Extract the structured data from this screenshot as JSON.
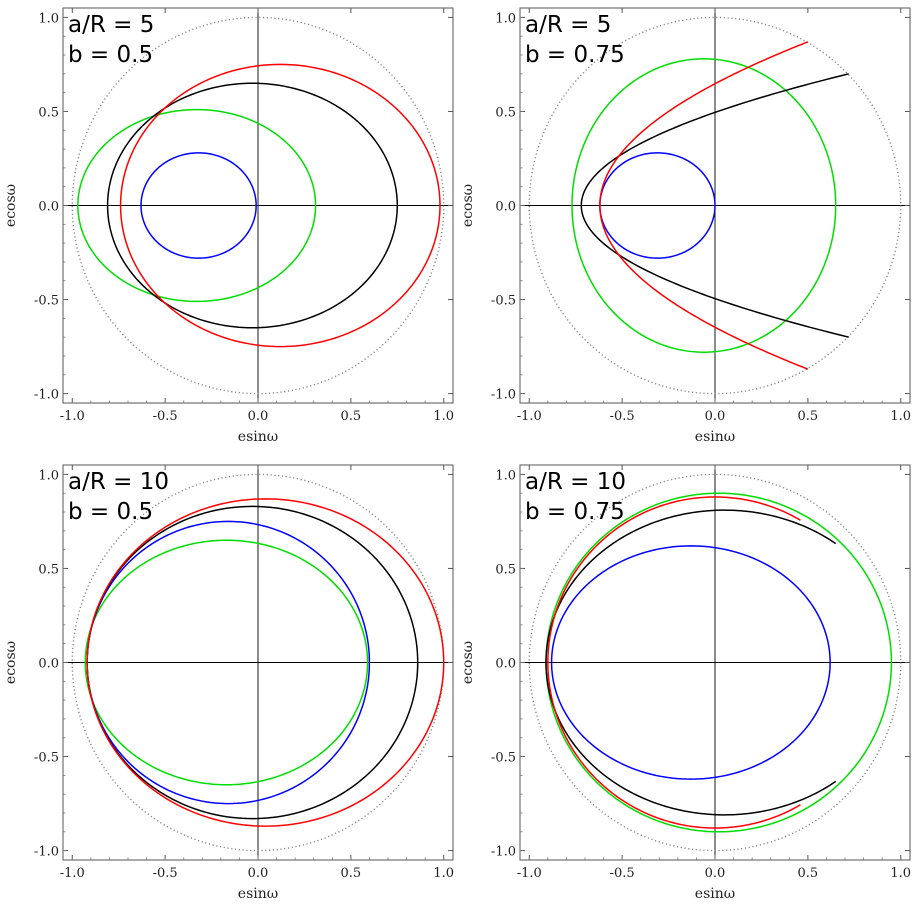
{
  "chart_data": [
    {
      "type": "line",
      "annotation": [
        "a/R = 5",
        "b = 0.5"
      ],
      "xlabel": "esinω",
      "ylabel": "ecosω",
      "xlim": [
        -1.05,
        1.05
      ],
      "ylim": [
        -1.05,
        1.05
      ],
      "xticks": [
        "-1.0",
        "-0.5",
        "0.0",
        "0.5",
        "1.0"
      ],
      "yticks": [
        "-1.0",
        "-0.5",
        "0.0",
        "0.5",
        "1.0"
      ],
      "reference": {
        "shape": "circle",
        "radius": 1.0,
        "color": "#888888",
        "style": "dotted"
      },
      "series": [
        {
          "color": "#0000ff",
          "shape": "ellipse",
          "cx": -0.32,
          "cy": 0.0,
          "rx": 0.31,
          "ry": 0.28
        },
        {
          "color": "#00dd00",
          "shape": "ellipse",
          "cx": -0.33,
          "cy": 0.0,
          "rx": 0.64,
          "ry": 0.51
        },
        {
          "color": "#000000",
          "shape": "ellipse",
          "cx": -0.03,
          "cy": 0.0,
          "rx": 0.78,
          "ry": 0.65
        },
        {
          "color": "#ff0000",
          "shape": "ellipse",
          "cx": 0.12,
          "cy": 0.0,
          "rx": 0.86,
          "ry": 0.75
        }
      ]
    },
    {
      "type": "line",
      "annotation": [
        "a/R = 5",
        "b = 0.75"
      ],
      "xlabel": "esinω",
      "ylabel": "ecosω",
      "xlim": [
        -1.05,
        1.05
      ],
      "ylim": [
        -1.05,
        1.05
      ],
      "xticks": [
        "-1.0",
        "-0.5",
        "0.0",
        "0.5",
        "1.0"
      ],
      "yticks": [
        "-1.0",
        "-0.5",
        "0.0",
        "0.5",
        "1.0"
      ],
      "reference": {
        "shape": "circle",
        "radius": 1.0,
        "color": "#888888",
        "style": "dotted"
      },
      "series": [
        {
          "color": "#0000ff",
          "shape": "ellipse",
          "cx": -0.31,
          "cy": 0.0,
          "rx": 0.31,
          "ry": 0.28
        },
        {
          "color": "#00dd00",
          "shape": "ellipse",
          "cx": -0.06,
          "cy": 0.0,
          "rx": 0.71,
          "ry": 0.78
        },
        {
          "color": "#000000",
          "shape": "parabola",
          "vertex_x": -0.72,
          "end_x": 0.72,
          "end_y": 0.7
        },
        {
          "color": "#ff0000",
          "shape": "parabola",
          "vertex_x": -0.62,
          "end_x": 0.5,
          "end_y": 0.87
        }
      ]
    },
    {
      "type": "line",
      "annotation": [
        "a/R = 10",
        "b = 0.5"
      ],
      "xlabel": "esinω",
      "ylabel": "ecosω",
      "xlim": [
        -1.05,
        1.05
      ],
      "ylim": [
        -1.05,
        1.05
      ],
      "xticks": [
        "-1.0",
        "-0.5",
        "0.0",
        "0.5",
        "1.0"
      ],
      "yticks": [
        "-1.0",
        "-0.5",
        "0.0",
        "0.5",
        "1.0"
      ],
      "reference": {
        "shape": "circle",
        "radius": 1.0,
        "color": "#888888",
        "style": "dotted"
      },
      "series": [
        {
          "color": "#00dd00",
          "shape": "ellipse",
          "cx": -0.17,
          "cy": 0.0,
          "rx": 0.76,
          "ry": 0.65
        },
        {
          "color": "#0000ff",
          "shape": "ellipse",
          "cx": -0.16,
          "cy": 0.0,
          "rx": 0.76,
          "ry": 0.75
        },
        {
          "color": "#000000",
          "shape": "ellipse",
          "cx": -0.03,
          "cy": 0.0,
          "rx": 0.89,
          "ry": 0.83
        },
        {
          "color": "#ff0000",
          "shape": "ellipse",
          "cx": 0.04,
          "cy": 0.0,
          "rx": 0.96,
          "ry": 0.87
        }
      ]
    },
    {
      "type": "line",
      "annotation": [
        "a/R = 10",
        "b = 0.75"
      ],
      "xlabel": "esinω",
      "ylabel": "ecosω",
      "xlim": [
        -1.05,
        1.05
      ],
      "ylim": [
        -1.05,
        1.05
      ],
      "xticks": [
        "-1.0",
        "-0.5",
        "0.0",
        "0.5",
        "1.0"
      ],
      "yticks": [
        "-1.0",
        "-0.5",
        "0.0",
        "0.5",
        "1.0"
      ],
      "reference": {
        "shape": "circle",
        "radius": 1.0,
        "color": "#888888",
        "style": "dotted"
      },
      "series": [
        {
          "color": "#0000ff",
          "shape": "ellipse",
          "cx": -0.13,
          "cy": 0.0,
          "rx": 0.75,
          "ry": 0.62
        },
        {
          "color": "#00dd00",
          "shape": "ellipse",
          "cx": 0.02,
          "cy": 0.0,
          "rx": 0.93,
          "ry": 0.9
        },
        {
          "color": "#000000",
          "shape": "arc",
          "cx": 0.05,
          "cy": 0.0,
          "rx": 0.96,
          "ry": 0.81,
          "end_x": 0.65,
          "end_y": 0.76
        },
        {
          "color": "#ff0000",
          "shape": "arc",
          "cx": 0.0,
          "cy": 0.0,
          "rx": 0.9,
          "ry": 0.88,
          "end_x": 0.46,
          "end_y": 0.88
        }
      ]
    }
  ]
}
